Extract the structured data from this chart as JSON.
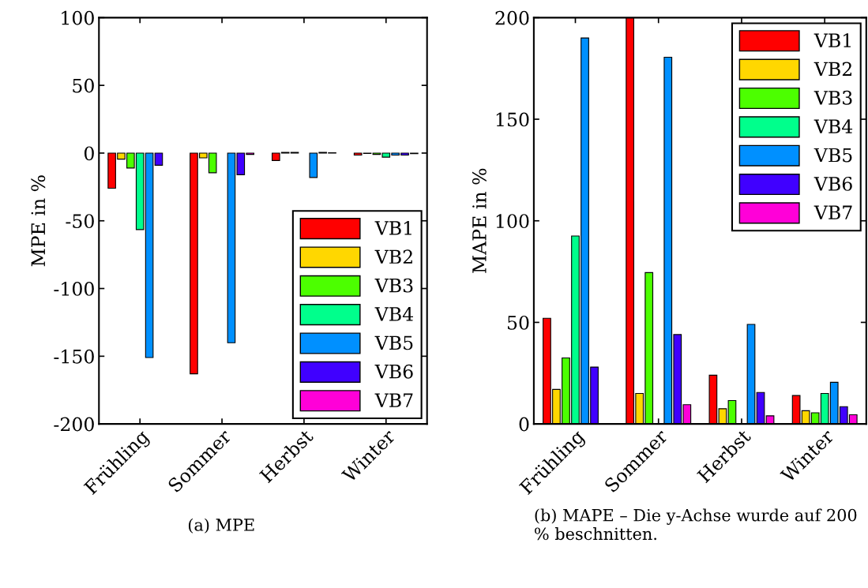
{
  "chart_data": [
    {
      "type": "bar",
      "ylabel": "MPE in %",
      "categories": [
        "Frühling",
        "Sommer",
        "Herbst",
        "Winter"
      ],
      "ylim": [
        -200,
        100
      ],
      "yticks": [
        -200,
        -150,
        -100,
        -50,
        0,
        50,
        100
      ],
      "legend": "bottom right",
      "grid": false,
      "annotations": [
        "(a) MPE"
      ],
      "series": [
        {
          "name": "VB1",
          "color": "#ff0000",
          "values": [
            -26,
            -163,
            -5.5,
            -1.5
          ]
        },
        {
          "name": "VB2",
          "color": "#ffd700",
          "values": [
            -4.5,
            -3.5,
            0.5,
            -0.3
          ]
        },
        {
          "name": "VB3",
          "color": "#4cff00",
          "values": [
            -11,
            -14.5,
            0.5,
            -1
          ]
        },
        {
          "name": "VB4",
          "color": "#00ff8c",
          "values": [
            -56.5,
            null,
            null,
            -3
          ]
        },
        {
          "name": "VB5",
          "color": "#0090ff",
          "values": [
            -151,
            -140,
            -18,
            -1.5
          ]
        },
        {
          "name": "VB6",
          "color": "#4000ff",
          "values": [
            -9,
            -16,
            0.5,
            -1.5
          ]
        },
        {
          "name": "VB7",
          "color": "#ff00d8",
          "values": [
            null,
            -1,
            0.3,
            -0.5
          ]
        }
      ]
    },
    {
      "type": "bar",
      "ylabel": "MAPE in %",
      "categories": [
        "Frühling",
        "Sommer",
        "Herbst",
        "Winter"
      ],
      "ylim": [
        0,
        200
      ],
      "yticks": [
        0,
        50,
        100,
        150,
        200
      ],
      "legend": "top right",
      "grid": false,
      "annotations": [
        "(b) MAPE – Die y-Achse wurde auf 200 % beschnitten."
      ],
      "series": [
        {
          "name": "VB1",
          "color": "#ff0000",
          "values": [
            52,
            200,
            24,
            14
          ]
        },
        {
          "name": "VB2",
          "color": "#ffd700",
          "values": [
            17,
            15,
            7.5,
            6.5
          ]
        },
        {
          "name": "VB3",
          "color": "#4cff00",
          "values": [
            32.5,
            74.5,
            11.5,
            5.5
          ]
        },
        {
          "name": "VB4",
          "color": "#00ff8c",
          "values": [
            92.5,
            null,
            null,
            15
          ]
        },
        {
          "name": "VB5",
          "color": "#0090ff",
          "values": [
            190,
            180.5,
            49,
            20.5
          ]
        },
        {
          "name": "VB6",
          "color": "#4000ff",
          "values": [
            28,
            44,
            15.5,
            8.5
          ]
        },
        {
          "name": "VB7",
          "color": "#ff00d8",
          "values": [
            null,
            9.5,
            4,
            4.5
          ]
        }
      ]
    }
  ]
}
